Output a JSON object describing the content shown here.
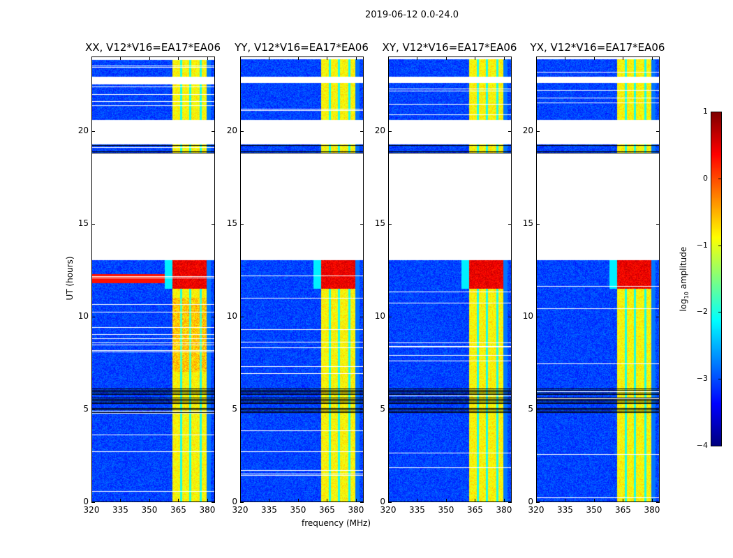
{
  "suptitle": "2019-06-12 0.0-24.0",
  "chart_data": {
    "type": "heatmap",
    "panels": [
      {
        "title": "XX, V12*V16=EA17*EA06",
        "pol": "XX"
      },
      {
        "title": "YY, V12*V16=EA17*EA06",
        "pol": "YY"
      },
      {
        "title": "XY, V12*V16=EA17*EA06",
        "pol": "XY"
      },
      {
        "title": "YX, V12*V16=EA17*EA06",
        "pol": "YX"
      }
    ],
    "xlabel": "frequency (MHz)",
    "ylabel": "UT (hours)",
    "xlim": [
      320,
      384
    ],
    "ylim": [
      0,
      24
    ],
    "xticks": [
      "320",
      "335",
      "350",
      "365",
      "380"
    ],
    "xtick_values": [
      320,
      335,
      350,
      365,
      380
    ],
    "yticks": [
      "0",
      "5",
      "10",
      "15",
      "20"
    ],
    "ytick_values": [
      0,
      5,
      10,
      15,
      20
    ],
    "data_segments_hours": [
      [
        0,
        13.05
      ],
      [
        18.8,
        19.3
      ],
      [
        20.6,
        22.6
      ],
      [
        22.95,
        23.9
      ]
    ],
    "black_rows_hours": [
      [
        4.8,
        6.3
      ],
      [
        18.8,
        18.95
      ],
      [
        19.05,
        19.1
      ],
      [
        19.2,
        19.25
      ]
    ],
    "bright_band_mhz": [
      362,
      380
    ],
    "hot_rows_hours": [
      [
        11.5,
        13.05
      ]
    ],
    "colorbar": {
      "label": "log10 amplitude",
      "label_main": "log",
      "label_sub": "10",
      "label_rest": " amplitude",
      "range": [
        -4,
        1
      ],
      "ticks": [
        "1",
        "0",
        "−1",
        "−2",
        "−3",
        "−4"
      ],
      "tick_values": [
        1,
        0,
        -1,
        -2,
        -3,
        -4
      ],
      "colormap": "jet"
    }
  }
}
